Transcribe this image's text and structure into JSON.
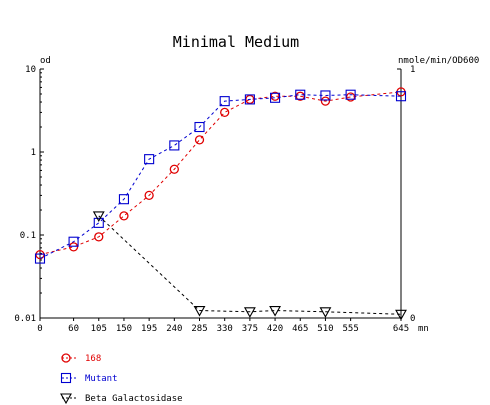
{
  "chart_data": {
    "type": "line",
    "title": "Minimal Medium",
    "left_axis_label": "od",
    "right_axis_label": "nmole/min/OD600",
    "x_unit_label": "mn",
    "x_ticks": [
      "0",
      "60",
      "105",
      "150",
      "195",
      "240",
      "285",
      "330",
      "375",
      "420",
      "465",
      "510",
      "555",
      "645"
    ],
    "left_scale": "log",
    "left_ylim": [
      0.01,
      10
    ],
    "left_ticks": [
      {
        "value": 10,
        "label": "10"
      },
      {
        "value": 1,
        "label": "1"
      },
      {
        "value": 0.1,
        "label": "0.1"
      },
      {
        "value": 0.01,
        "label": "0.01"
      }
    ],
    "right_ylim": [
      0,
      1
    ],
    "right_ticks": [
      {
        "value": 1,
        "label": "1"
      },
      {
        "value": 0,
        "label": "0"
      }
    ],
    "series": [
      {
        "name": "168",
        "color": "#e00000",
        "marker": "circle",
        "axis": "left",
        "x": [
          0,
          60,
          105,
          150,
          195,
          240,
          285,
          330,
          375,
          420,
          465,
          510,
          555,
          645
        ],
        "values": [
          0.058,
          0.072,
          0.095,
          0.17,
          0.3,
          0.62,
          1.4,
          3.0,
          4.3,
          4.7,
          4.7,
          4.1,
          4.6,
          5.3
        ]
      },
      {
        "name": "Mutant",
        "color": "#0000d0",
        "marker": "square",
        "axis": "left",
        "x": [
          0,
          60,
          105,
          150,
          195,
          240,
          285,
          330,
          375,
          420,
          465,
          510,
          555,
          645
        ],
        "values": [
          0.052,
          0.083,
          0.14,
          0.27,
          0.82,
          1.2,
          2.0,
          4.1,
          4.3,
          4.5,
          4.9,
          4.8,
          4.9,
          4.7
        ]
      },
      {
        "name": "Beta Galactosidase",
        "color": "#000000",
        "marker": "triangle",
        "axis": "right",
        "x": [
          105,
          285,
          375,
          420,
          510,
          645
        ],
        "values": [
          0.41,
          0.03,
          0.025,
          0.03,
          0.025,
          0.015
        ]
      }
    ]
  }
}
